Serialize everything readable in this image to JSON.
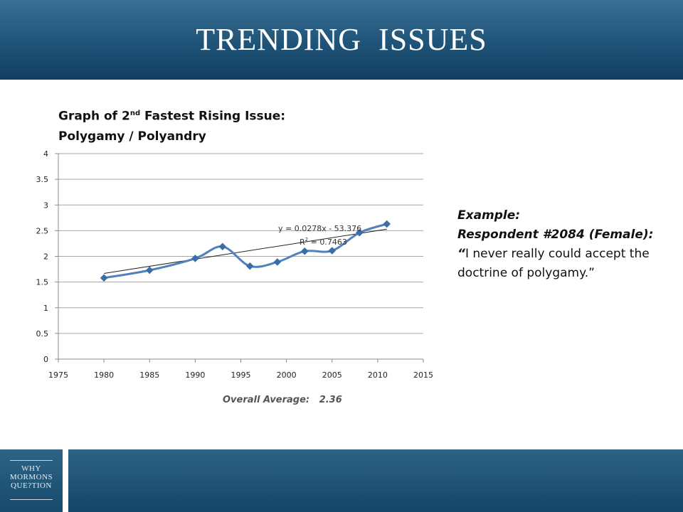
{
  "header": {
    "title": "TRENDING  ISSUES"
  },
  "chart_title": {
    "line1_prefix": "Graph of 2",
    "line1_sup": "nd",
    "line1_suffix": " Fastest Rising Issue:",
    "line2": "Polygamy / Polyandry"
  },
  "chart_data": {
    "type": "scatter",
    "title": "Graph of 2nd Fastest Rising Issue: Polygamy / Polyandry",
    "xlim": [
      1975,
      2015
    ],
    "ylim": [
      0,
      4
    ],
    "x_ticks": [
      1975,
      1980,
      1985,
      1990,
      1995,
      2000,
      2005,
      2010,
      2015
    ],
    "y_ticks": [
      0,
      0.5,
      1,
      1.5,
      2,
      2.5,
      3,
      3.5,
      4
    ],
    "grid": true,
    "series": [
      {
        "color": "#4f81bd",
        "marker": "diamond",
        "smooth": true,
        "points": [
          [
            1980,
            1.58
          ],
          [
            1985,
            1.73
          ],
          [
            1990,
            1.96
          ],
          [
            1993,
            2.19
          ],
          [
            1996,
            1.81
          ],
          [
            1999,
            1.89
          ],
          [
            2002,
            2.1
          ],
          [
            2005,
            2.11
          ],
          [
            2008,
            2.46
          ],
          [
            2011,
            2.63
          ]
        ]
      }
    ],
    "trendline": {
      "equation": "y = 0.0278x - 53.376",
      "r2_label": "R",
      "r2_sup": "2",
      "r2_value": " = 0.7463",
      "slope": 0.0278,
      "intercept": -53.376,
      "x_range": [
        1980,
        2011
      ],
      "color": "#222222"
    },
    "annotation": "Overall Average:   2.36"
  },
  "example": {
    "heading": "Example:",
    "respondent": "Respondent #2084 (Female):",
    "quote_mark": "“",
    "quote": "I never really could accept the doctrine of polygamy.”"
  },
  "footer": {
    "logo_line1": "WHY",
    "logo_line2": "MORMONS",
    "logo_line3": "QUE?TION"
  }
}
